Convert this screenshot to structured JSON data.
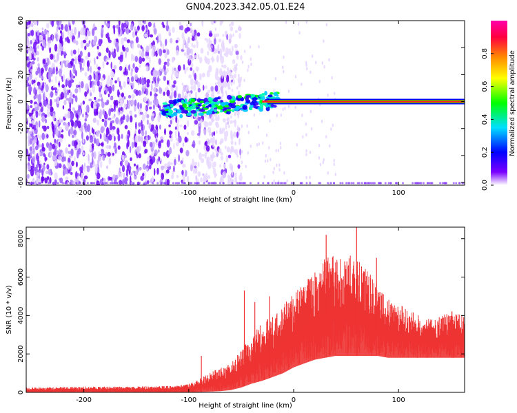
{
  "title": "GN04.2023.342.05.01.E24",
  "chart_data": [
    {
      "type": "heatmap",
      "xlabel": "Height of straight line (km)",
      "ylabel": "Frequency (Hz)",
      "xlim": [
        -255,
        163
      ],
      "ylim": [
        -62,
        60
      ],
      "x_ticks": [
        -200,
        -100,
        0,
        100
      ],
      "y_ticks": [
        -60,
        -40,
        -20,
        0,
        20,
        40,
        60
      ],
      "colorbar": {
        "label": "Normalized spectral amplitude",
        "range": [
          0,
          1
        ],
        "ticks": [
          0.0,
          0.2,
          0.4,
          0.6,
          0.8
        ],
        "colormap": [
          "#ffffff",
          "#7a00ff",
          "#0000ff",
          "#00e0ff",
          "#00ff00",
          "#ffff00",
          "#ff8800",
          "#ff0040",
          "#ff00aa"
        ]
      },
      "features": {
        "noise_band_x": [
          -255,
          -80
        ],
        "ridge_frequency_hz": 0,
        "ridge_start_x": -125,
        "ridge_end_x": 163
      }
    },
    {
      "type": "line",
      "xlabel": "Height of straight line (km)",
      "ylabel": "SNR (10 * v/v)",
      "xlim": [
        -255,
        163
      ],
      "ylim": [
        0,
        8600
      ],
      "x_ticks": [
        -200,
        -100,
        0,
        100
      ],
      "y_ticks": [
        0,
        2000,
        4000,
        6000,
        8000
      ],
      "color": "#ee3333",
      "envelope": {
        "x": [
          -255,
          -200,
          -150,
          -110,
          -100,
          -90,
          -80,
          -70,
          -60,
          -50,
          -40,
          -30,
          -20,
          -10,
          0,
          10,
          20,
          30,
          40,
          50,
          60,
          70,
          80,
          90,
          100,
          110,
          120,
          130,
          140,
          150,
          163
        ],
        "lower": [
          0,
          0,
          0,
          0,
          0,
          20,
          40,
          60,
          120,
          250,
          450,
          600,
          800,
          1000,
          1300,
          1500,
          1700,
          1800,
          1900,
          1900,
          1900,
          1900,
          1900,
          1800,
          1800,
          1800,
          1800,
          1800,
          1800,
          1800,
          1800
        ],
        "upper": [
          250,
          300,
          300,
          350,
          450,
          700,
          1000,
          1300,
          1500,
          2200,
          3000,
          3600,
          4000,
          4500,
          5200,
          5800,
          6300,
          7000,
          7400,
          7200,
          7000,
          6400,
          5600,
          5000,
          4600,
          4300,
          4000,
          3800,
          4000,
          4300,
          4100
        ],
        "peaks": [
          {
            "x": -88,
            "y": 1900
          },
          {
            "x": -47,
            "y": 5300
          },
          {
            "x": -37,
            "y": 4700
          },
          {
            "x": -23,
            "y": 5000
          },
          {
            "x": 31,
            "y": 8200
          },
          {
            "x": 60,
            "y": 8600
          },
          {
            "x": 79,
            "y": 7000
          }
        ]
      }
    }
  ]
}
